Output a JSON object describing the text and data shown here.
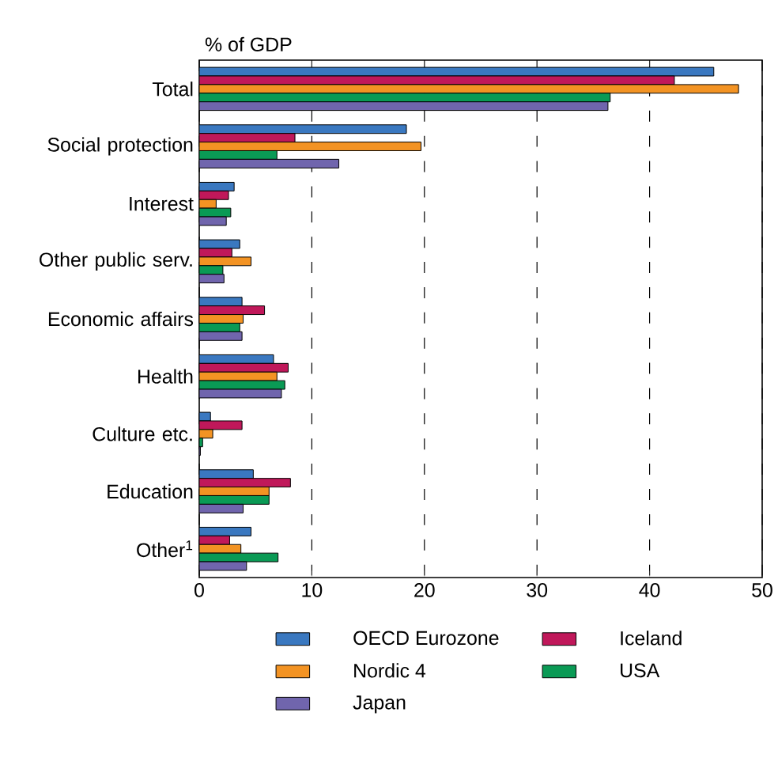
{
  "chart_data": {
    "type": "bar",
    "orientation": "horizontal",
    "xlabel": "% of GDP",
    "categories": [
      "Total",
      "Social protection",
      "Interest",
      "Other public serv.",
      "Economic affairs",
      "Health",
      "Culture etc.",
      "Education",
      "Other$^{1}$"
    ],
    "series": [
      {
        "name": "OECD Eurozone",
        "color": "#3a78c0",
        "values": [
          45.7,
          18.4,
          3.1,
          3.6,
          3.8,
          6.6,
          1.0,
          4.8,
          4.6
        ]
      },
      {
        "name": "Iceland",
        "color": "#c0185a",
        "values": [
          42.2,
          8.5,
          2.6,
          2.9,
          5.8,
          7.9,
          3.8,
          8.1,
          2.7
        ]
      },
      {
        "name": "Nordic 4",
        "color": "#f39323",
        "values": [
          47.9,
          19.7,
          1.5,
          4.6,
          3.9,
          6.9,
          1.2,
          6.2,
          3.7
        ]
      },
      {
        "name": "USA",
        "color": "#0a9a55",
        "values": [
          36.5,
          6.9,
          2.8,
          2.1,
          3.6,
          7.6,
          0.3,
          6.2,
          7.0
        ]
      },
      {
        "name": "Japan",
        "color": "#7065ad",
        "values": [
          36.3,
          12.4,
          2.4,
          2.2,
          3.8,
          7.3,
          0.1,
          3.9,
          4.2
        ]
      }
    ],
    "xlim": [
      0,
      50
    ],
    "xticks": [
      0,
      10,
      20,
      30,
      40,
      50
    ],
    "grid": "x",
    "legend": "bottom"
  }
}
